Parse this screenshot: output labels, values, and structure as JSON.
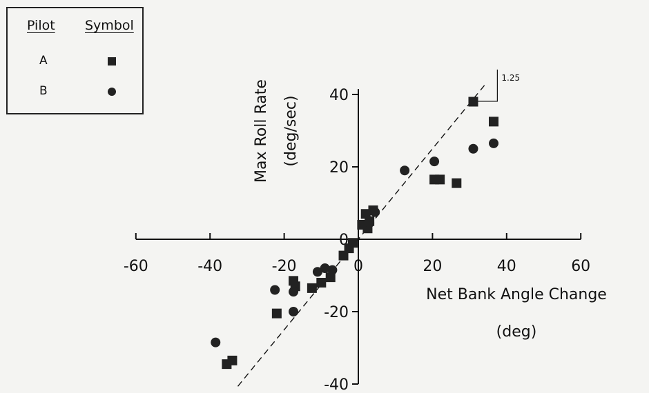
{
  "legend": {
    "header_pilot": "Pilot",
    "header_symbol": "Symbol",
    "rows": [
      {
        "pilot": "A",
        "symbol": "square-marker"
      },
      {
        "pilot": "B",
        "symbol": "circle-marker"
      }
    ]
  },
  "chart_data": {
    "type": "scatter",
    "title": "",
    "xlabel_line1": "Net Bank Angle Change",
    "xlabel_line2": "(deg)",
    "ylabel_line1": "Max Roll Rate",
    "ylabel_line2": "(deg/sec)",
    "xlim": [
      -60,
      60
    ],
    "ylim": [
      -40,
      40
    ],
    "x_ticks": [
      -60,
      -40,
      -20,
      0,
      20,
      40,
      60
    ],
    "y_ticks": [
      40,
      20,
      0,
      -20,
      -40
    ],
    "x_tick_labels": [
      "-60",
      "-40",
      "-20",
      "0",
      "20",
      "40",
      "60"
    ],
    "y_tick_labels": [
      "40",
      "20",
      "0",
      "-20",
      "-40"
    ],
    "grid": false,
    "legend_position": "top-left",
    "marker_color": "#222222",
    "reference_line": {
      "slope": 1.25,
      "label": "1.25",
      "style": "dashed"
    },
    "series": [
      {
        "name": "A",
        "marker": "square",
        "points": [
          [
            31,
            38
          ],
          [
            36.5,
            32.5
          ],
          [
            20.5,
            16.5
          ],
          [
            22,
            16.5
          ],
          [
            26.5,
            15.5
          ],
          [
            2,
            7
          ],
          [
            3,
            5
          ],
          [
            4,
            8
          ],
          [
            1,
            4
          ],
          [
            2.5,
            3
          ],
          [
            -1.5,
            -1
          ],
          [
            -2.5,
            -2.5
          ],
          [
            -4,
            -4.5
          ],
          [
            -7.5,
            -10.5
          ],
          [
            -10,
            -12
          ],
          [
            -12.5,
            -13.5
          ],
          [
            -17.5,
            -11.5
          ],
          [
            -17,
            -13
          ],
          [
            -22,
            -20.5
          ],
          [
            -34,
            -33.5
          ],
          [
            -35.5,
            -34.5
          ]
        ]
      },
      {
        "name": "B",
        "marker": "circle",
        "points": [
          [
            36.5,
            26.5
          ],
          [
            31,
            25
          ],
          [
            20.5,
            21.5
          ],
          [
            12.5,
            19
          ],
          [
            4.5,
            7.5
          ],
          [
            3,
            4.5
          ],
          [
            -7,
            -8.5
          ],
          [
            -9,
            -8
          ],
          [
            -11,
            -9
          ],
          [
            -17.5,
            -14.5
          ],
          [
            -17.5,
            -20
          ],
          [
            -22.5,
            -14
          ],
          [
            -38.5,
            -28.5
          ]
        ]
      }
    ]
  }
}
